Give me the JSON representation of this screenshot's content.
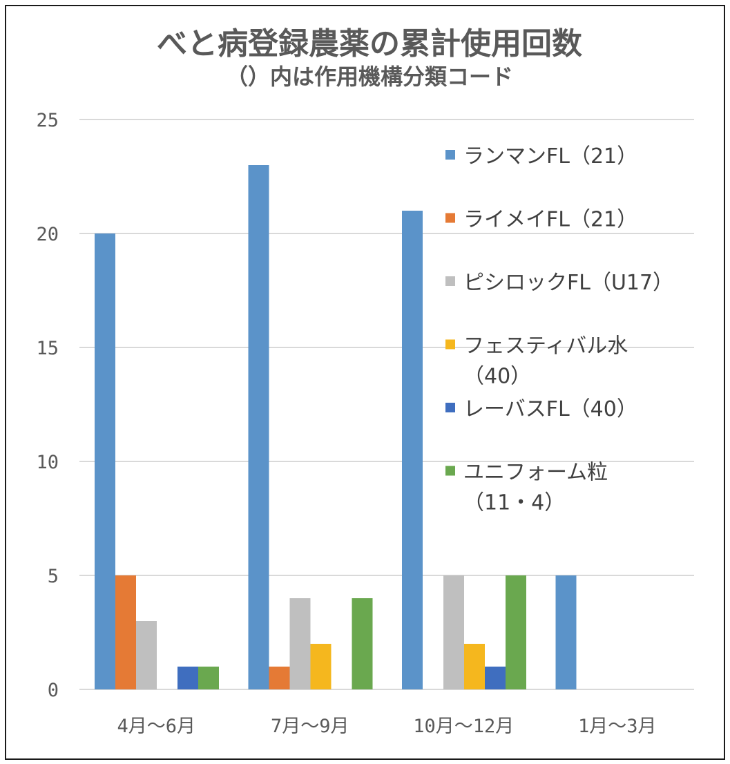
{
  "chart_data": {
    "type": "bar",
    "title": "べと病登録農薬の累計使用回数",
    "subtitle": "（）内は作用機構分類コード",
    "categories": [
      "4月～6月",
      "7月～9月",
      "10月～12月",
      "1月～3月"
    ],
    "ylim": [
      0,
      25
    ],
    "yticks": [
      0,
      5,
      10,
      15,
      20,
      25
    ],
    "grid": true,
    "legend_position": "right",
    "series": [
      {
        "name": "ランマンFL（21）",
        "name_lines": [
          "ランマンFL（21）"
        ],
        "color": "#5b93c9",
        "values": [
          20,
          23,
          21,
          5
        ]
      },
      {
        "name": "ライメイFL（21）",
        "name_lines": [
          "ライメイFL（21）"
        ],
        "color": "#e57a35",
        "values": [
          5,
          1,
          0,
          0
        ]
      },
      {
        "name": "ピシロックFL（U17）",
        "name_lines": [
          "ピシロックFL（U17）"
        ],
        "color": "#bfbfbf",
        "values": [
          3,
          4,
          5,
          0
        ]
      },
      {
        "name": "フェスティバル水（40）",
        "name_lines": [
          "フェスティバル水",
          "（40）"
        ],
        "color": "#f5b71e",
        "values": [
          0,
          2,
          2,
          0
        ]
      },
      {
        "name": "レーバスFL（40）",
        "name_lines": [
          "レーバスFL（40）"
        ],
        "color": "#3f6ebf",
        "values": [
          1,
          0,
          1,
          0
        ]
      },
      {
        "name": "ユニフォーム粒（11・4）",
        "name_lines": [
          "ユニフォーム粒",
          "（11・4）"
        ],
        "color": "#6aa84f",
        "values": [
          1,
          4,
          5,
          0
        ]
      }
    ]
  }
}
